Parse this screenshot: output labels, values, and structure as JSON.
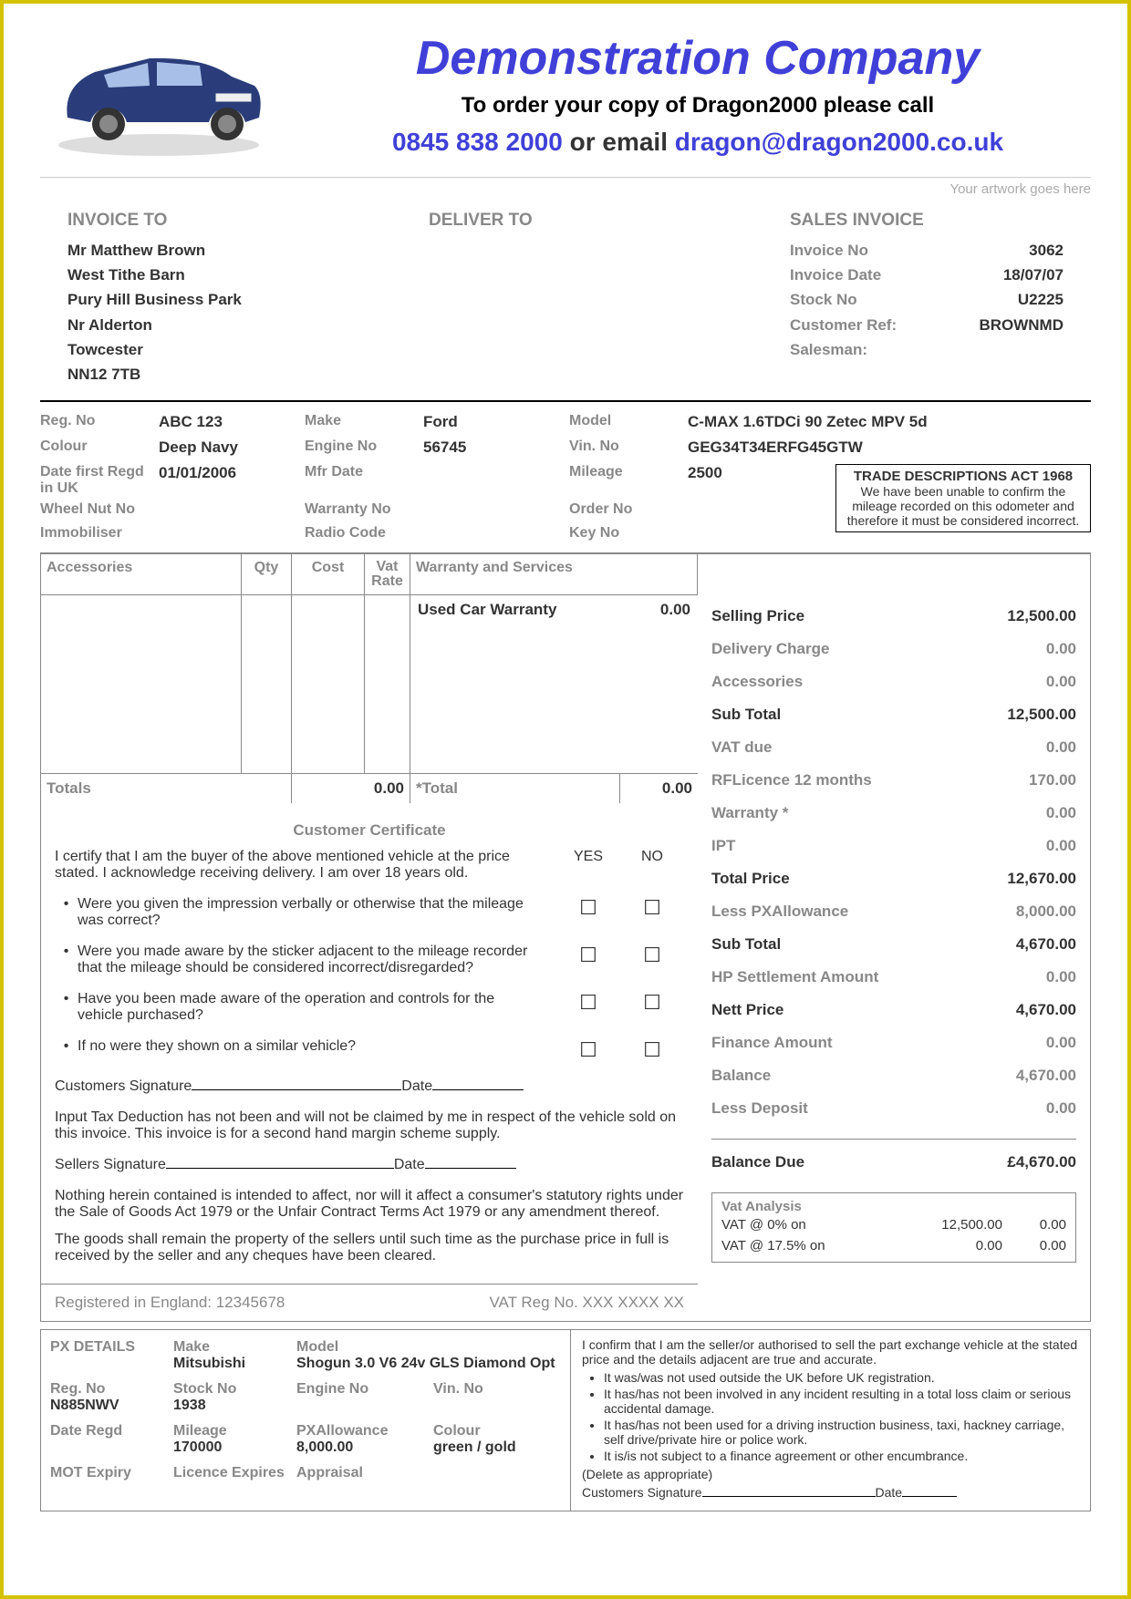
{
  "header": {
    "company": "Demonstration Company",
    "orderLine": "To order your copy of Dragon2000 please call",
    "phone": "0845 838 2000",
    "orEmail": " or email ",
    "email": "dragon@dragon2000.co.uk",
    "artwork": "Your artwork goes here"
  },
  "invoiceTo": {
    "title": "INVOICE TO",
    "lines": [
      "Mr Matthew Brown",
      "West Tithe Barn",
      "Pury Hill Business Park",
      "Nr Alderton",
      "Towcester",
      "NN12 7TB"
    ]
  },
  "deliverTo": {
    "title": "DELIVER TO"
  },
  "salesInvoice": {
    "title": "SALES INVOICE",
    "rows": [
      {
        "lab": "Invoice No",
        "val": "3062"
      },
      {
        "lab": "Invoice Date",
        "val": "18/07/07"
      },
      {
        "lab": "Stock No",
        "val": "U2225"
      },
      {
        "lab": "Customer Ref:",
        "val": "BROWNMD"
      },
      {
        "lab": "Salesman:",
        "val": ""
      }
    ]
  },
  "vehicle": {
    "r1": {
      "regNo": "Reg. No",
      "regNoV": "ABC 123",
      "make": "Make",
      "makeV": "Ford",
      "model": "Model",
      "modelV": "C-MAX 1.6TDCi 90 Zetec MPV 5d"
    },
    "r2": {
      "colour": "Colour",
      "colourV": "Deep Navy",
      "engine": "Engine No",
      "engineV": "56745",
      "vin": "Vin. No",
      "vinV": "GEG34T34ERFG45GTW"
    },
    "r3": {
      "dfr": "Date first Regd in UK",
      "dfrV": "01/01/2006",
      "mfr": "Mfr Date",
      "mfrV": "",
      "mileage": "Mileage",
      "mileageV": "2500"
    },
    "r4": {
      "wheel": "Wheel Nut No",
      "warr": "Warranty No",
      "order": "Order No"
    },
    "r5": {
      "immob": "Immobiliser",
      "radio": "Radio Code",
      "key": "Key No"
    },
    "trade": {
      "title": "TRADE DESCRIPTIONS ACT 1968",
      "body": "We have been unable to confirm the mileage recorded on this odometer and therefore it must be considered incorrect."
    }
  },
  "accHead": {
    "acc": "Accessories",
    "qty": "Qty",
    "cost": "Cost",
    "vat": "Vat Rate",
    "warr": "Warranty and Services"
  },
  "warrItem": {
    "name": "Used Car Warranty",
    "val": "0.00"
  },
  "totals": {
    "lab": "Totals",
    "val": "0.00",
    "lab2": "*Total",
    "val2": "0.00"
  },
  "cert": {
    "title": "Customer Certificate",
    "intro": "I certify that I am the buyer of the above mentioned vehicle at the price stated. I acknowledge receiving delivery. I am over 18 years old.",
    "yes": "YES",
    "no": "NO",
    "qs": [
      "Were you given the impression verbally or otherwise that the mileage was correct?",
      "Were you made aware by the sticker adjacent to the mileage recorder that the mileage should be considered incorrect/disregarded?",
      "Have you been made aware of the operation and controls for the vehicle purchased?",
      "If no were they shown on a similar vehicle?"
    ],
    "custSig": "Customers Signature",
    "date": "Date",
    "tax": "Input Tax Deduction has not been and will not be claimed by me in respect of the vehicle sold on this invoice. This invoice is for a second hand margin scheme supply.",
    "sellSig": "Sellers Signature",
    "rights": "Nothing herein contained is intended to affect, nor will it affect a consumer's statutory rights under the Sale of Goods Act 1979 or the Unfair Contract Terms Act 1979 or any amendment thereof.",
    "goods": "The goods shall remain the property of the sellers until such time as the purchase price in full is received by the seller and any cheques have been cleared.",
    "reg": "Registered in England: 12345678",
    "vatReg": "VAT Reg No. XXX XXXX XX"
  },
  "prices": [
    {
      "lab": "Selling Price",
      "val": "12,500.00",
      "bold": true
    },
    {
      "lab": "Delivery Charge",
      "val": "0.00",
      "bold": false
    },
    {
      "lab": "Accessories",
      "val": "0.00",
      "bold": false
    },
    {
      "lab": "Sub Total",
      "val": "12,500.00",
      "bold": true
    },
    {
      "lab": "VAT due",
      "val": "0.00",
      "bold": false
    },
    {
      "lab": "RFLicence   12 months",
      "val": "170.00",
      "bold": false
    },
    {
      "lab": "Warranty *",
      "val": "0.00",
      "bold": false
    },
    {
      "lab": "IPT",
      "val": "0.00",
      "bold": false
    },
    {
      "lab": "Total Price",
      "val": "12,670.00",
      "bold": true
    },
    {
      "lab": "Less PXAllowance",
      "val": "8,000.00",
      "bold": false
    },
    {
      "lab": "Sub Total",
      "val": "4,670.00",
      "bold": true
    },
    {
      "lab": "HP Settlement Amount",
      "val": "0.00",
      "bold": false
    },
    {
      "lab": "Nett Price",
      "val": "4,670.00",
      "bold": true
    },
    {
      "lab": "Finance Amount",
      "val": "0.00",
      "bold": false
    },
    {
      "lab": "Balance",
      "val": "4,670.00",
      "bold": false
    },
    {
      "lab": "Less Deposit",
      "val": "0.00",
      "bold": false
    }
  ],
  "balanceDue": {
    "lab": "Balance Due",
    "val": "£4,670.00"
  },
  "vatAnalysis": {
    "title": "Vat Analysis",
    "rows": [
      {
        "v1": "VAT @ 0% on",
        "v2": "12,500.00",
        "v3": "0.00"
      },
      {
        "v1": "VAT @ 17.5% on",
        "v2": "0.00",
        "v3": "0.00"
      }
    ]
  },
  "px": {
    "title": "PX DETAILS",
    "cells": [
      {
        "lab": "Make",
        "val": "Mitsubishi"
      },
      {
        "lab": "Model",
        "val": "Shogun 3.0 V6 24v GLS Diamond Opt"
      },
      {
        "lab": "Reg. No",
        "val": "N885NWV"
      },
      {
        "lab": "Stock No",
        "val": "1938"
      },
      {
        "lab": "Engine No",
        "val": ""
      },
      {
        "lab": "Vin. No",
        "val": ""
      },
      {
        "lab": "Date Regd",
        "val": ""
      },
      {
        "lab": "Mileage",
        "val": "170000"
      },
      {
        "lab": "PXAllowance",
        "val": "8,000.00"
      },
      {
        "lab": "Colour",
        "val": "green / gold"
      },
      {
        "lab": "MOT Expiry",
        "val": ""
      },
      {
        "lab": "Licence Expires",
        "val": ""
      },
      {
        "lab": "Appraisal",
        "val": ""
      }
    ],
    "confirm": "I confirm that I am the seller/or authorised to sell the part exchange vehicle at the stated price and the details adjacent are true and accurate.",
    "bullets": [
      "It was/was not used outside the UK before UK registration.",
      "It has/has not been involved in any incident resulting in a total loss claim or serious accidental damage.",
      "It has/has not been used for a driving instruction business, taxi, hackney carriage, self drive/private hire or police work.",
      "It is/is not subject to a finance agreement or other encumbrance."
    ],
    "delete": "(Delete as appropriate)",
    "sig": "Customers Signature",
    "date": "Date"
  }
}
